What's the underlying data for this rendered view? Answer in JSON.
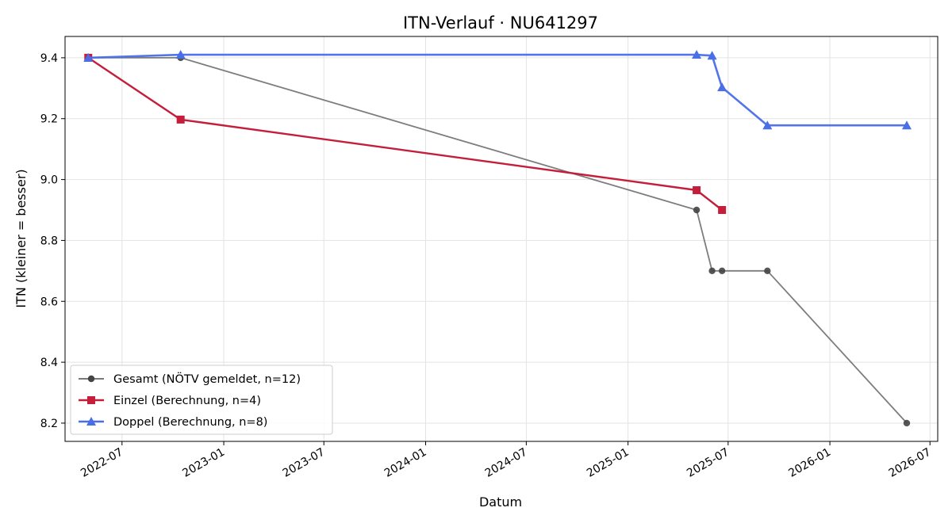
{
  "chart_data": {
    "type": "line",
    "title": "ITN-Verlauf · NU641297",
    "xlabel": "Datum",
    "ylabel": "ITN  (kleiner = besser)",
    "x_axis": "date",
    "xlim": [
      "2022-03-20",
      "2026-07-15"
    ],
    "ylim": [
      8.14,
      9.47
    ],
    "x_ticks": [
      "2022-07-01",
      "2023-01-01",
      "2023-07-01",
      "2024-01-01",
      "2024-07-01",
      "2025-01-01",
      "2025-07-01",
      "2026-01-01",
      "2026-07-01"
    ],
    "x_tick_labels": [
      "2022-07",
      "2023-01",
      "2023-07",
      "2024-01",
      "2024-07",
      "2025-01",
      "2025-07",
      "2026-01",
      "2026-07"
    ],
    "y_ticks": [
      8.2,
      8.4,
      8.6,
      8.8,
      9.0,
      9.2,
      9.4
    ],
    "y_tick_labels": [
      "8.2",
      "8.4",
      "8.6",
      "8.8",
      "9.0",
      "9.2",
      "9.4"
    ],
    "grid": true,
    "legend_position": "lower-left",
    "series": [
      {
        "name": "Gesamt (NÖTV gemeldet, n=12)",
        "color": "#666666",
        "marker": "circle",
        "x": [
          "2022-05-01",
          "2022-10-15",
          "2025-05-05",
          "2025-06-02",
          "2025-06-20",
          "2025-09-10",
          "2026-05-20"
        ],
        "y": [
          9.4,
          9.4,
          8.9,
          8.7,
          8.7,
          8.7,
          8.2
        ]
      },
      {
        "name": "Einzel (Berechnung, n=4)",
        "color": "#c41e3a",
        "marker": "square",
        "x": [
          "2022-05-01",
          "2022-10-15",
          "2025-05-05",
          "2025-06-20"
        ],
        "y": [
          9.4,
          9.197,
          8.965,
          8.9
        ]
      },
      {
        "name": "Doppel (Berechnung, n=8)",
        "color": "#4a6ee8",
        "marker": "triangle",
        "x": [
          "2022-05-01",
          "2022-10-15",
          "2025-05-05",
          "2025-06-02",
          "2025-06-20",
          "2025-09-10",
          "2026-05-20"
        ],
        "y": [
          9.4,
          9.41,
          9.41,
          9.407,
          9.303,
          9.178,
          9.178
        ]
      }
    ]
  }
}
